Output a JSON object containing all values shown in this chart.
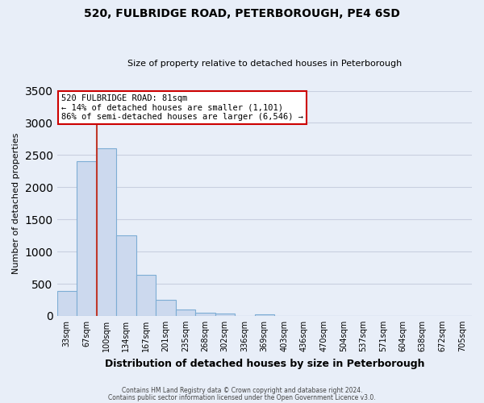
{
  "title": "520, FULBRIDGE ROAD, PETERBOROUGH, PE4 6SD",
  "subtitle": "Size of property relative to detached houses in Peterborough",
  "xlabel": "Distribution of detached houses by size in Peterborough",
  "ylabel": "Number of detached properties",
  "bar_color": "#ccd9ee",
  "bar_edge_color": "#7dadd4",
  "background_color": "#e8eef8",
  "grid_color": "#c8cfe0",
  "categories": [
    "33sqm",
    "67sqm",
    "100sqm",
    "134sqm",
    "167sqm",
    "201sqm",
    "235sqm",
    "268sqm",
    "302sqm",
    "336sqm",
    "369sqm",
    "403sqm",
    "436sqm",
    "470sqm",
    "504sqm",
    "537sqm",
    "571sqm",
    "604sqm",
    "638sqm",
    "672sqm",
    "705sqm"
  ],
  "bar_values": [
    390,
    2400,
    2600,
    1250,
    640,
    250,
    105,
    55,
    35,
    0,
    30,
    0,
    0,
    0,
    0,
    0,
    0,
    0,
    0,
    0,
    0
  ],
  "ylim": [
    0,
    3500
  ],
  "yticks": [
    0,
    500,
    1000,
    1500,
    2000,
    2500,
    3000,
    3500
  ],
  "vline_color": "#c0392b",
  "annotation_title": "520 FULBRIDGE ROAD: 81sqm",
  "annotation_line1": "← 14% of detached houses are smaller (1,101)",
  "annotation_line2": "86% of semi-detached houses are larger (6,546) →",
  "annotation_box_color": "#ffffff",
  "annotation_box_edge_color": "#cc0000",
  "footer1": "Contains HM Land Registry data © Crown copyright and database right 2024.",
  "footer2": "Contains public sector information licensed under the Open Government Licence v3.0."
}
